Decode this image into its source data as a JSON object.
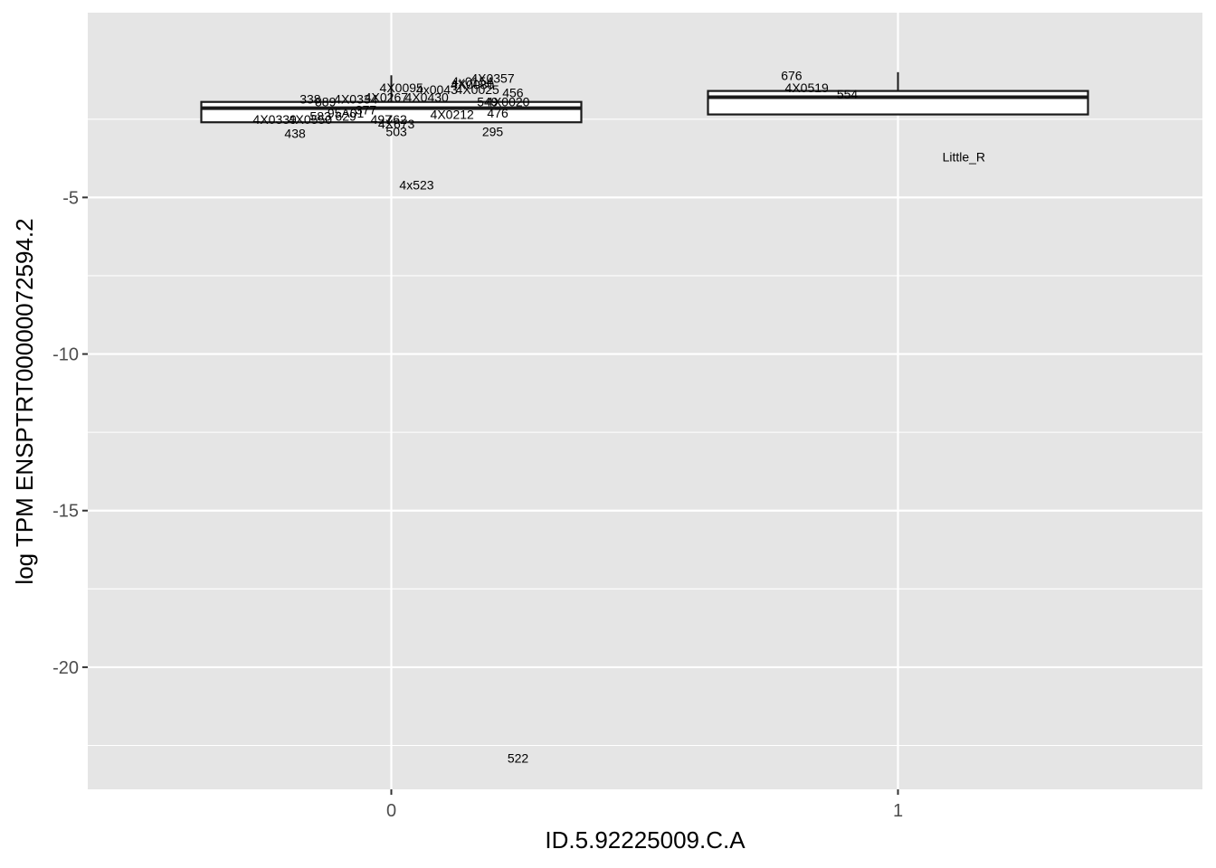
{
  "chart_data": {
    "type": "boxplot",
    "xlabel": "ID.5.92225009.C.A",
    "ylabel": "log TPM ENSPTRT00000072594.2",
    "x_categories": [
      "0",
      "1"
    ],
    "ylim": [
      -23.9,
      0.9
    ],
    "y_ticks": [
      -5,
      -10,
      -15,
      -20
    ],
    "y_tick_labels": [
      "-5",
      "-10",
      "-15",
      "-20"
    ],
    "grid": true,
    "colors": {
      "panel": "#e5e5e5",
      "grid": "#ffffff",
      "box": "#1a1a1a"
    },
    "boxes": [
      {
        "group": "0",
        "whisker_max": -1.1,
        "q3": -1.95,
        "median": -2.15,
        "q1": -2.6,
        "whisker_min": -2.6
      },
      {
        "group": "1",
        "whisker_max": -1.0,
        "q3": -1.6,
        "median": -1.8,
        "q1": -2.35,
        "whisker_min": -2.35
      }
    ],
    "point_labels": [
      {
        "group": "0",
        "dx": 0.02,
        "y": -1.5,
        "text": "4X0095"
      },
      {
        "group": "0",
        "dx": -0.16,
        "y": -1.85,
        "text": "338"
      },
      {
        "group": "0",
        "dx": -0.13,
        "y": -1.95,
        "text": "889"
      },
      {
        "group": "0",
        "dx": -0.07,
        "y": -1.85,
        "text": "4X0334"
      },
      {
        "group": "0",
        "dx": -0.01,
        "y": -1.8,
        "text": "4X0267"
      },
      {
        "group": "0",
        "dx": 0.07,
        "y": -1.8,
        "text": "4X0430"
      },
      {
        "group": "0",
        "dx": 0.09,
        "y": -1.55,
        "text": "4x0043"
      },
      {
        "group": "0",
        "dx": 0.16,
        "y": -1.3,
        "text": "4x0154"
      },
      {
        "group": "0",
        "dx": 0.2,
        "y": -1.2,
        "text": "4X0357"
      },
      {
        "group": "0",
        "dx": 0.16,
        "y": -1.4,
        "text": "4X0080"
      },
      {
        "group": "0",
        "dx": 0.17,
        "y": -1.55,
        "text": "4X0025"
      },
      {
        "group": "0",
        "dx": 0.24,
        "y": -1.65,
        "text": "456"
      },
      {
        "group": "0",
        "dx": 0.19,
        "y": -1.95,
        "text": "549"
      },
      {
        "group": "0",
        "dx": 0.23,
        "y": -1.95,
        "text": "4X0020"
      },
      {
        "group": "0",
        "dx": 0.12,
        "y": -2.35,
        "text": "4X0212"
      },
      {
        "group": "0",
        "dx": 0.21,
        "y": -2.3,
        "text": "476"
      },
      {
        "group": "0",
        "dx": -0.09,
        "y": -2.3,
        "text": "95A01"
      },
      {
        "group": "0",
        "dx": -0.05,
        "y": -2.2,
        "text": "377"
      },
      {
        "group": "0",
        "dx": -0.14,
        "y": -2.4,
        "text": "583"
      },
      {
        "group": "0",
        "dx": -0.09,
        "y": -2.4,
        "text": "629"
      },
      {
        "group": "0",
        "dx": -0.23,
        "y": -2.5,
        "text": "4X0339"
      },
      {
        "group": "0",
        "dx": -0.16,
        "y": -2.5,
        "text": "4X0550"
      },
      {
        "group": "0",
        "dx": -0.02,
        "y": -2.5,
        "text": "497"
      },
      {
        "group": "0",
        "dx": 0.01,
        "y": -2.5,
        "text": "762"
      },
      {
        "group": "0",
        "dx": 0.01,
        "y": -2.65,
        "text": "4X673"
      },
      {
        "group": "0",
        "dx": -0.19,
        "y": -2.95,
        "text": "438"
      },
      {
        "group": "0",
        "dx": 0.01,
        "y": -2.9,
        "text": "503"
      },
      {
        "group": "0",
        "dx": 0.2,
        "y": -2.9,
        "text": "295"
      },
      {
        "group": "0",
        "dx": 0.05,
        "y": -4.6,
        "text": "4x523"
      },
      {
        "group": "0",
        "dx": 0.25,
        "y": -22.9,
        "text": "522"
      },
      {
        "group": "1",
        "dx": -0.21,
        "y": -1.1,
        "text": "676"
      },
      {
        "group": "1",
        "dx": -0.18,
        "y": -1.5,
        "text": "4X0519"
      },
      {
        "group": "1",
        "dx": -0.1,
        "y": -1.7,
        "text": "554"
      },
      {
        "group": "1",
        "dx": 0.13,
        "y": -3.7,
        "text": "Little_R"
      }
    ]
  }
}
